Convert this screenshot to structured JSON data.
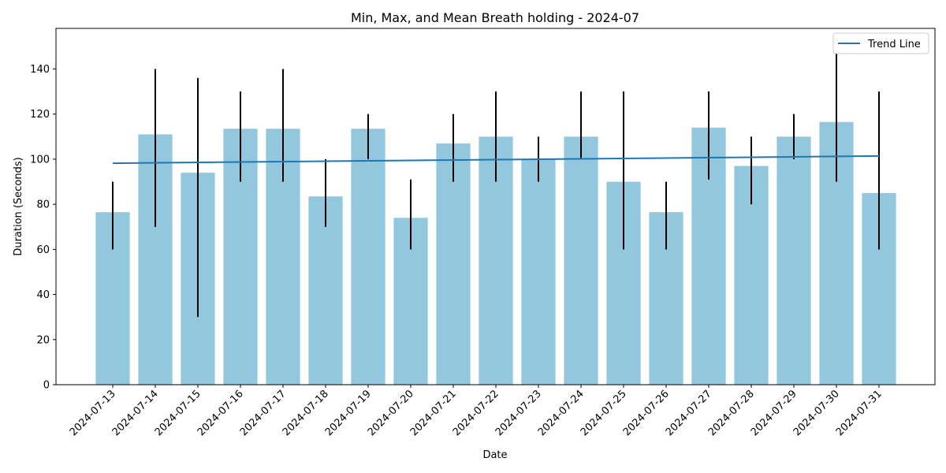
{
  "chart_data": {
    "type": "bar",
    "title": "Min, Max, and Mean Breath holding - 2024-07",
    "xlabel": "Date",
    "ylabel": "Duration (Seconds)",
    "ylim": [
      0,
      158
    ],
    "yticks": [
      0,
      20,
      40,
      60,
      80,
      100,
      120,
      140
    ],
    "grid": false,
    "legend_position": "top-right",
    "bar_color": "#92c7de",
    "errorbar_color": "#000000",
    "trend_color": "#1f77b4",
    "categories": [
      "2024-07-13",
      "2024-07-14",
      "2024-07-15",
      "2024-07-16",
      "2024-07-17",
      "2024-07-18",
      "2024-07-19",
      "2024-07-20",
      "2024-07-21",
      "2024-07-22",
      "2024-07-23",
      "2024-07-24",
      "2024-07-25",
      "2024-07-26",
      "2024-07-27",
      "2024-07-28",
      "2024-07-29",
      "2024-07-30",
      "2024-07-31"
    ],
    "series": [
      {
        "values": [
          76.5,
          111,
          94,
          113.5,
          113.5,
          83.5,
          113.5,
          74,
          107,
          110,
          100,
          110,
          90,
          76.5,
          114,
          97,
          110,
          116.5,
          85
        ]
      },
      {
        "values": [
          60,
          70,
          30,
          90,
          90,
          70,
          100,
          60,
          90,
          90,
          90,
          100,
          60,
          60,
          91,
          80,
          100,
          90,
          60
        ]
      },
      {
        "values": [
          90,
          140,
          136,
          130,
          140,
          100,
          120,
          91,
          120,
          130,
          110,
          130,
          130,
          90,
          130,
          110,
          120,
          150,
          130
        ]
      },
      {
        "name": "Trend Line",
        "start": 98.2,
        "end": 101.4
      }
    ]
  }
}
